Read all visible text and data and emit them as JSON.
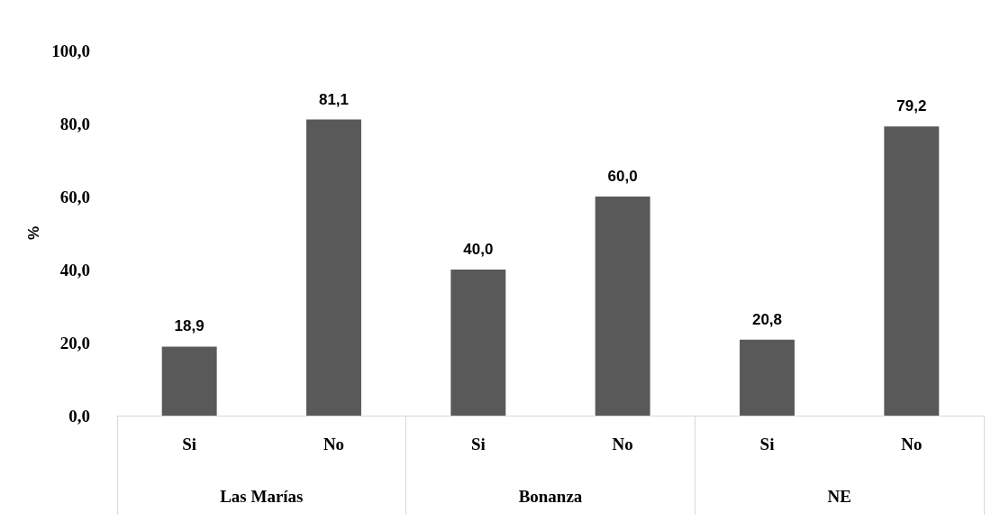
{
  "chart_data": {
    "type": "bar",
    "ylabel": "%",
    "categories": [
      "Si",
      "No",
      "Si",
      "No",
      "Si",
      "No"
    ],
    "values": [
      18.9,
      81.1,
      40.0,
      60.0,
      20.8,
      79.2
    ],
    "value_labels": [
      "18,9",
      "81,1",
      "40,0",
      "60,0",
      "20,8",
      "79,2"
    ],
    "color": "#595959",
    "ylim": [
      0,
      100
    ],
    "yticks": [
      {
        "value": 0,
        "label": "0,0"
      },
      {
        "value": 20,
        "label": "20,0"
      },
      {
        "value": 40,
        "label": "40,0"
      },
      {
        "value": 60,
        "label": "60,0"
      },
      {
        "value": 80,
        "label": "80,0"
      },
      {
        "value": 100,
        "label": "100,0"
      }
    ],
    "annotations": [
      "Las Marías",
      "Bonanza",
      "NE"
    ],
    "grid": false
  }
}
